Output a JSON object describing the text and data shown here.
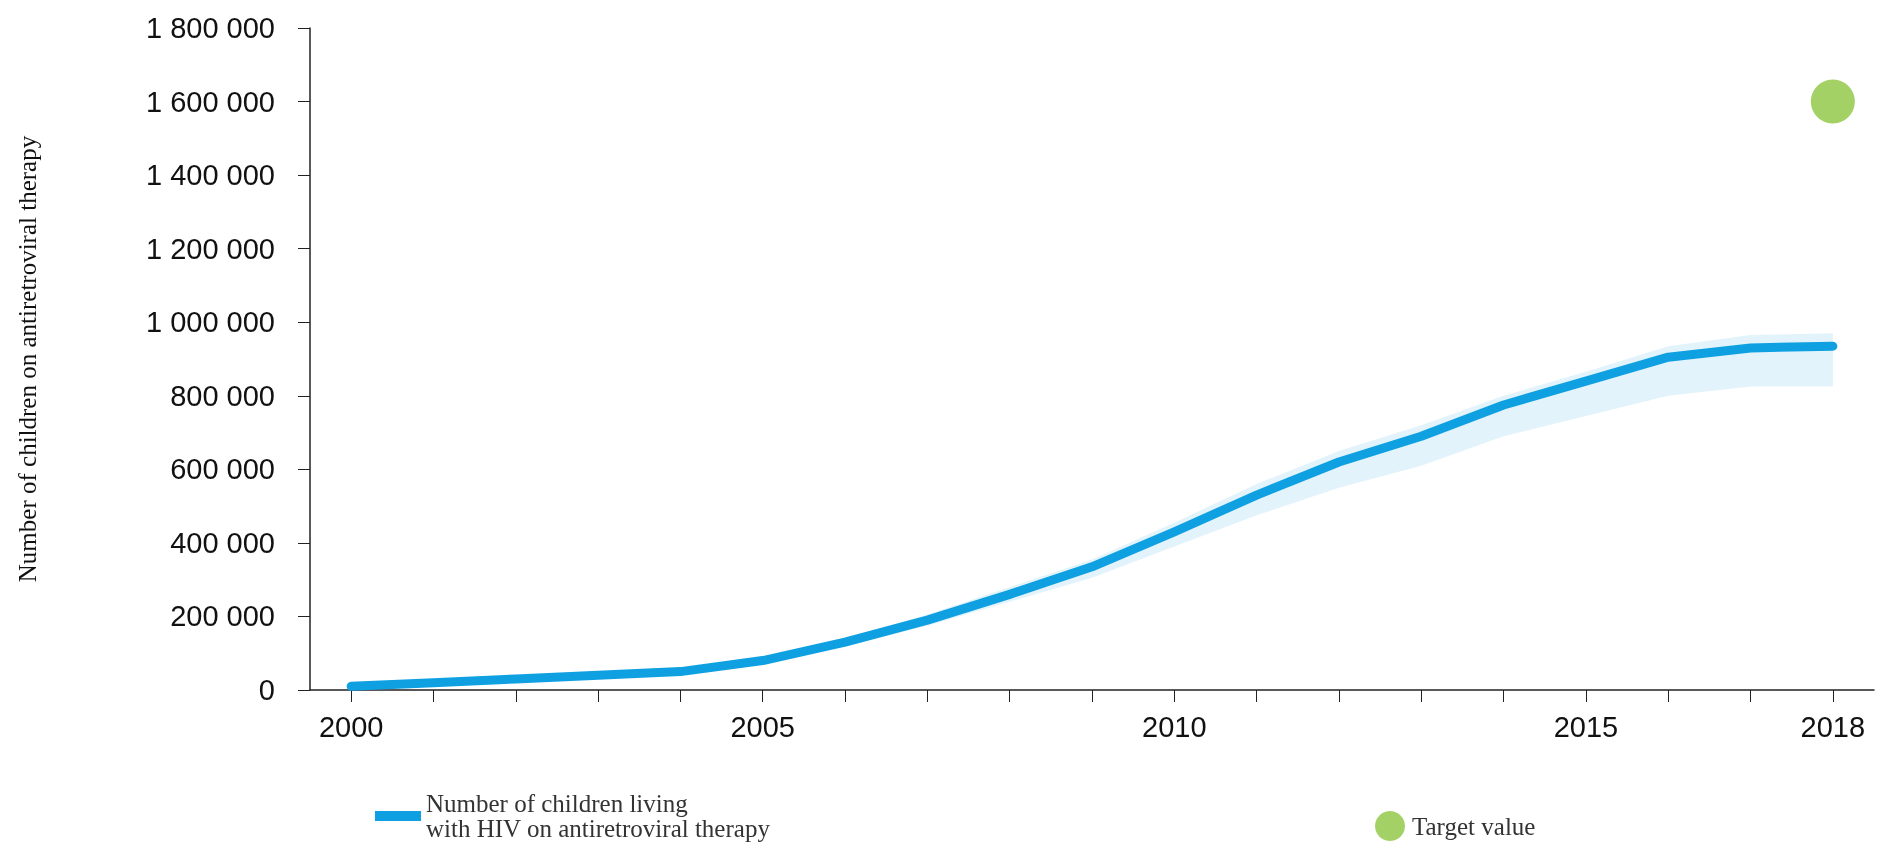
{
  "chart_data": {
    "type": "line",
    "ylabel": "Number of children on antiretroviral therapy",
    "xlim": [
      1999.5,
      2018.5
    ],
    "xticks": [
      {
        "value": 2000,
        "label": "2000"
      },
      {
        "value": 2001,
        "label": null
      },
      {
        "value": 2002,
        "label": null
      },
      {
        "value": 2003,
        "label": null
      },
      {
        "value": 2004,
        "label": null
      },
      {
        "value": 2005,
        "label": "2005"
      },
      {
        "value": 2006,
        "label": null
      },
      {
        "value": 2007,
        "label": null
      },
      {
        "value": 2008,
        "label": null
      },
      {
        "value": 2009,
        "label": null
      },
      {
        "value": 2010,
        "label": "2010"
      },
      {
        "value": 2011,
        "label": null
      },
      {
        "value": 2012,
        "label": null
      },
      {
        "value": 2013,
        "label": null
      },
      {
        "value": 2014,
        "label": null
      },
      {
        "value": 2015,
        "label": "2015"
      },
      {
        "value": 2016,
        "label": null
      },
      {
        "value": 2017,
        "label": null
      },
      {
        "value": 2018,
        "label": "2018"
      }
    ],
    "ylim": [
      0,
      1800000
    ],
    "yticks": [
      {
        "value": 0,
        "label": "0"
      },
      {
        "value": 200000,
        "label": "200 000"
      },
      {
        "value": 400000,
        "label": "400 000"
      },
      {
        "value": 600000,
        "label": "600 000"
      },
      {
        "value": 800000,
        "label": "800 000"
      },
      {
        "value": 1000000,
        "label": "1 000 000"
      },
      {
        "value": 1200000,
        "label": "1 200 000"
      },
      {
        "value": 1400000,
        "label": "1 400 000"
      },
      {
        "value": 1600000,
        "label": "1 600 000"
      },
      {
        "value": 1800000,
        "label": "1 800 000"
      }
    ],
    "grid": false,
    "legend": "bottom",
    "series": [
      {
        "name": "Number of children living\nwith HIV on antiretroviral therapy",
        "color": "#0fa0e2",
        "marker": "none",
        "x": [
          2000,
          2001,
          2002,
          2003,
          2004,
          2005,
          2006,
          2007,
          2008,
          2009,
          2010,
          2011,
          2012,
          2013,
          2014,
          2015,
          2016,
          2017,
          2018
        ],
        "values": [
          10000,
          20000,
          30000,
          40000,
          50000,
          80000,
          130000,
          190000,
          260000,
          335000,
          430000,
          530000,
          620000,
          690000,
          775000,
          840000,
          905000,
          930000,
          935000
        ],
        "lower": [
          8000,
          16000,
          25000,
          34000,
          44000,
          72000,
          118000,
          175000,
          240000,
          305000,
          390000,
          475000,
          550000,
          610000,
          690000,
          745000,
          800000,
          825000,
          825000
        ],
        "upper": [
          12000,
          23000,
          34000,
          45000,
          56000,
          88000,
          140000,
          205000,
          280000,
          355000,
          455000,
          560000,
          650000,
          720000,
          800000,
          865000,
          935000,
          965000,
          970000
        ]
      },
      {
        "name": "Target value",
        "type": "scatter",
        "color": "#8dc63f",
        "marker": "circle",
        "x": [
          2018
        ],
        "values": [
          1600000
        ]
      }
    ]
  }
}
